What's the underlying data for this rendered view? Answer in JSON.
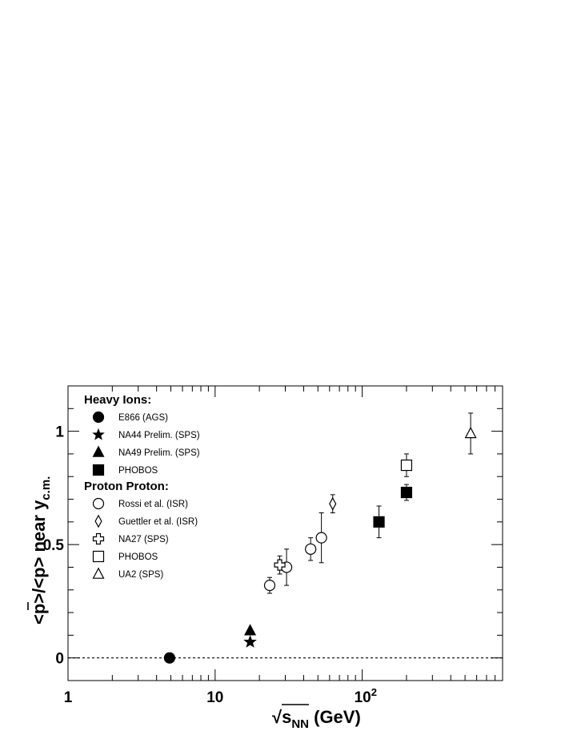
{
  "chart_data": {
    "type": "scatter",
    "xscale": "log",
    "xlim": [
      1,
      900
    ],
    "ylim": [
      -0.1,
      1.2
    ],
    "grid": false,
    "legend_position": "top-left",
    "xlabel": {
      "prefix": "√",
      "main": "s",
      "sub": "NN",
      "unit": " (GeV)"
    },
    "ylabel": {
      "main": "<p>/<p> near y",
      "sub": "c.m."
    },
    "x_ticks": [
      {
        "value": 1,
        "label": "1",
        "sup": ""
      },
      {
        "value": 10,
        "label": "10",
        "sup": ""
      },
      {
        "value": 100,
        "label": "10",
        "sup": "2"
      }
    ],
    "y_ticks": [
      {
        "value": 0,
        "label": "0"
      },
      {
        "value": 0.5,
        "label": "0.5"
      },
      {
        "value": 1,
        "label": "1"
      }
    ],
    "reference_line": {
      "y": 0,
      "style": "dashed"
    },
    "legend_groups": [
      {
        "title": "Heavy Ions:",
        "entries": [
          "E866 (AGS)",
          "NA44 Prelim. (SPS)",
          "NA49 Prelim. (SPS)",
          "PHOBOS"
        ]
      },
      {
        "title": "Proton Proton:",
        "entries": [
          "Rossi et al. (ISR)",
          "Guettler et al. (ISR)",
          "NA27 (SPS)",
          "PHOBOS",
          "UA2 (SPS)"
        ]
      }
    ],
    "series": [
      {
        "name": "E866 (AGS)",
        "marker": "circle",
        "filled": true,
        "points": [
          {
            "x": 4.9,
            "y": 0.0,
            "err": 0.0
          }
        ]
      },
      {
        "name": "NA44 Prelim. (SPS)",
        "marker": "star",
        "filled": true,
        "points": [
          {
            "x": 17.3,
            "y": 0.07,
            "err": 0.0
          }
        ]
      },
      {
        "name": "NA49 Prelim. (SPS)",
        "marker": "triangle",
        "filled": true,
        "points": [
          {
            "x": 17.3,
            "y": 0.12,
            "err": 0.0
          }
        ]
      },
      {
        "name": "PHOBOS",
        "marker": "square",
        "filled": true,
        "points": [
          {
            "x": 130,
            "y": 0.6,
            "err": 0.07
          },
          {
            "x": 200,
            "y": 0.73,
            "err": 0.035
          }
        ]
      },
      {
        "name": "Rossi et al. (ISR)",
        "marker": "circle",
        "filled": false,
        "points": [
          {
            "x": 23.5,
            "y": 0.32,
            "err": 0.035
          },
          {
            "x": 30.6,
            "y": 0.4,
            "err": 0.08
          },
          {
            "x": 44.6,
            "y": 0.48,
            "err": 0.05
          },
          {
            "x": 52.8,
            "y": 0.53,
            "err": 0.11
          }
        ]
      },
      {
        "name": "Guettler et al. (ISR)",
        "marker": "diamond",
        "filled": false,
        "points": [
          {
            "x": 63,
            "y": 0.68,
            "err": 0.04
          }
        ]
      },
      {
        "name": "NA27 (SPS)",
        "marker": "cross",
        "filled": false,
        "points": [
          {
            "x": 27.5,
            "y": 0.41,
            "err": 0.04
          }
        ]
      },
      {
        "name": "PHOBOS",
        "marker": "square",
        "filled": false,
        "points": [
          {
            "x": 200,
            "y": 0.85,
            "err": 0.05
          }
        ]
      },
      {
        "name": "UA2 (SPS)",
        "marker": "triangle",
        "filled": false,
        "points": [
          {
            "x": 546,
            "y": 0.99,
            "err": 0.09
          }
        ]
      }
    ]
  }
}
